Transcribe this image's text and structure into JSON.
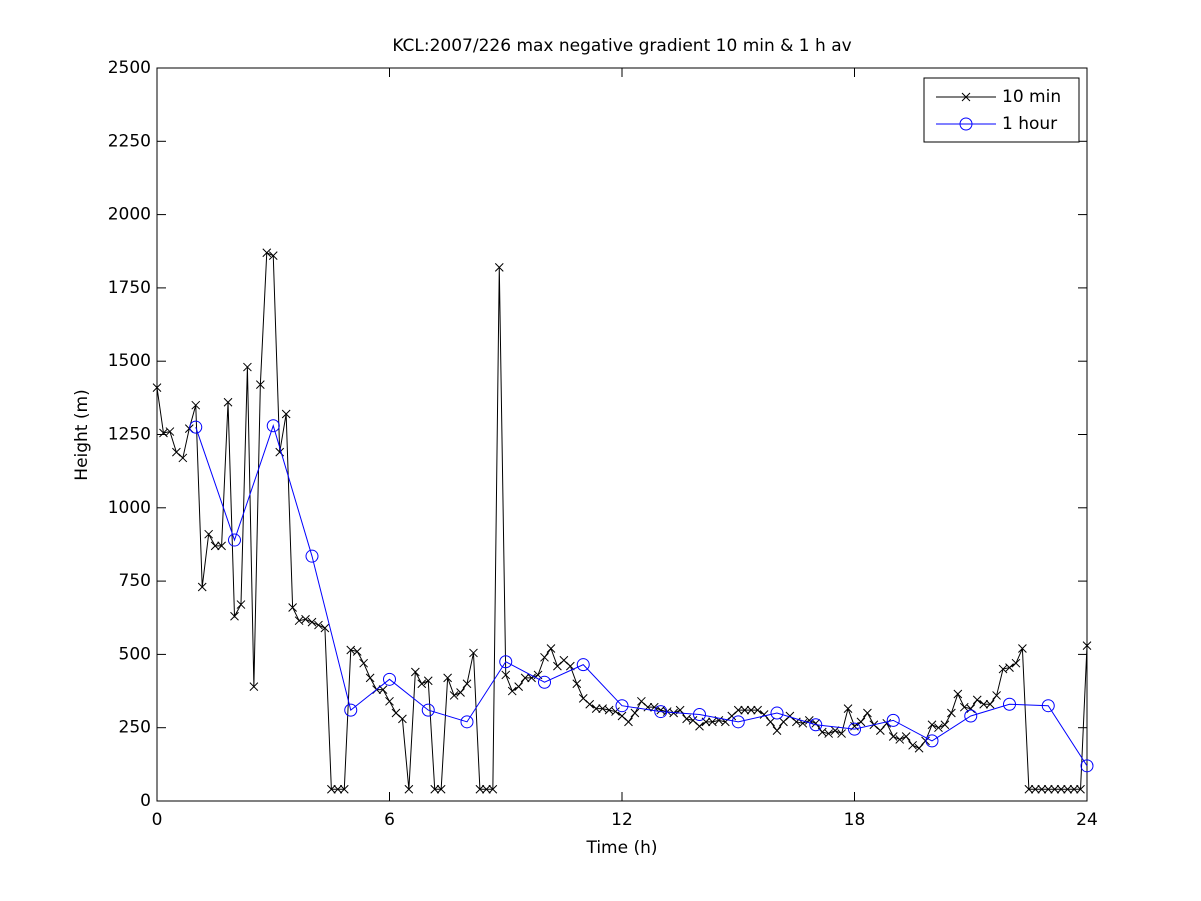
{
  "chart_data": {
    "type": "line",
    "title": "KCL:2007/226 max negative gradient 10 min & 1 h av",
    "xlabel": "Time (h)",
    "ylabel": "Height (m)",
    "xlim": [
      0,
      24
    ],
    "xticks": [
      0,
      6,
      12,
      18,
      24
    ],
    "ylim": [
      0,
      2500
    ],
    "yticks": [
      0,
      250,
      500,
      750,
      1000,
      1250,
      1500,
      1750,
      2000,
      2250,
      2500
    ],
    "legend": "upper right",
    "series": [
      {
        "name": "10 min",
        "color": "#000000",
        "marker": "x",
        "x": [
          0,
          0.167,
          0.333,
          0.5,
          0.667,
          0.833,
          1,
          1.167,
          1.333,
          1.5,
          1.667,
          1.833,
          2,
          2.167,
          2.333,
          2.5,
          2.667,
          2.833,
          3,
          3.167,
          3.333,
          3.5,
          3.667,
          3.833,
          4,
          4.167,
          4.333,
          4.5,
          4.667,
          4.833,
          5,
          5.167,
          5.333,
          5.5,
          5.667,
          5.833,
          6,
          6.167,
          6.333,
          6.5,
          6.667,
          6.833,
          7,
          7.167,
          7.333,
          7.5,
          7.667,
          7.833,
          8,
          8.167,
          8.333,
          8.5,
          8.667,
          8.833,
          9,
          9.167,
          9.333,
          9.5,
          9.667,
          9.833,
          10,
          10.167,
          10.333,
          10.5,
          10.667,
          10.833,
          11,
          11.167,
          11.333,
          11.5,
          11.667,
          11.833,
          12,
          12.167,
          12.333,
          12.5,
          12.667,
          12.833,
          13,
          13.167,
          13.333,
          13.5,
          13.667,
          13.833,
          14,
          14.167,
          14.333,
          14.5,
          14.667,
          14.833,
          15,
          15.167,
          15.333,
          15.5,
          15.667,
          15.833,
          16,
          16.167,
          16.333,
          16.5,
          16.667,
          16.833,
          17,
          17.167,
          17.333,
          17.5,
          17.667,
          17.833,
          18,
          18.167,
          18.333,
          18.5,
          18.667,
          18.833,
          19,
          19.167,
          19.333,
          19.5,
          19.667,
          19.833,
          20,
          20.167,
          20.333,
          20.5,
          20.667,
          20.833,
          21,
          21.167,
          21.333,
          21.5,
          21.667,
          21.833,
          22,
          22.167,
          22.333,
          22.5,
          22.667,
          22.833,
          23,
          23.167,
          23.333,
          23.5,
          23.667,
          23.833,
          24
        ],
        "values": [
          1410,
          1255,
          1260,
          1190,
          1170,
          1270,
          1350,
          730,
          910,
          870,
          870,
          1360,
          630,
          670,
          1480,
          390,
          1420,
          1870,
          1860,
          1190,
          1320,
          660,
          615,
          620,
          610,
          600,
          590,
          40,
          40,
          40,
          515,
          510,
          470,
          420,
          380,
          380,
          340,
          300,
          280,
          40,
          440,
          400,
          410,
          40,
          40,
          420,
          360,
          370,
          400,
          505,
          40,
          40,
          40,
          1820,
          430,
          375,
          390,
          420,
          420,
          430,
          490,
          520,
          460,
          480,
          460,
          400,
          350,
          330,
          315,
          315,
          310,
          305,
          290,
          270,
          300,
          340,
          320,
          320,
          310,
          305,
          300,
          310,
          280,
          275,
          255,
          270,
          270,
          275,
          270,
          290,
          310,
          310,
          310,
          310,
          295,
          270,
          240,
          270,
          290,
          270,
          265,
          275,
          265,
          235,
          230,
          240,
          230,
          315,
          255,
          270,
          300,
          260,
          240,
          265,
          220,
          210,
          220,
          190,
          180,
          205,
          260,
          250,
          260,
          300,
          365,
          320,
          315,
          345,
          330,
          330,
          360,
          450,
          455,
          470,
          520,
          40,
          40,
          40,
          40,
          40,
          40,
          40,
          40,
          40,
          530
        ]
      },
      {
        "name": "1 hour",
        "color": "#0000ff",
        "marker": "o",
        "x": [
          1,
          2,
          3,
          4,
          5,
          6,
          7,
          8,
          9,
          10,
          11,
          12,
          13,
          14,
          15,
          16,
          17,
          18,
          19,
          20,
          21,
          22,
          23,
          24
        ],
        "values": [
          1275,
          890,
          1280,
          835,
          310,
          415,
          310,
          270,
          475,
          405,
          465,
          325,
          305,
          295,
          270,
          300,
          260,
          245,
          275,
          205,
          290,
          330,
          325,
          120
        ]
      }
    ]
  }
}
